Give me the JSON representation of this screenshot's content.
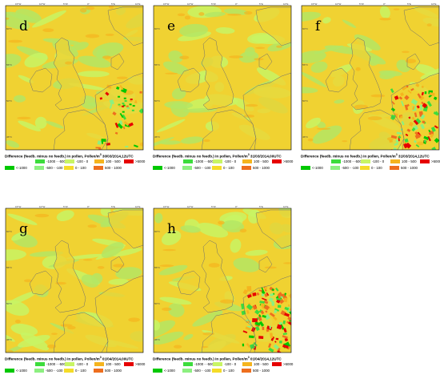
{
  "colors": {
    "lt_-1000": "#00c800",
    "-1000_-500": "#3cdc3c",
    "-500_-100": "#8cf080",
    "-100_0": "#c8f564",
    "0_100": "#f5dc28",
    "100_500": "#f5b41e",
    "500_1000": "#ee6e1e",
    "gt_5000": "#e60000",
    "sea_base": "#b4e664",
    "land_base": "#f0d232",
    "coast": "#6e6e6e",
    "border": "#000000"
  },
  "legend": [
    {
      "key": "lt_-1000",
      "label": "<-1000"
    },
    {
      "key": "-1000_-500",
      "label": "-1000 - -500"
    },
    {
      "key": "-500_-100",
      "label": "-500 - -100"
    },
    {
      "key": "-100_0",
      "label": "-100 - 0"
    },
    {
      "key": "0_100",
      "label": "0 - 100"
    },
    {
      "key": "100_500",
      "label": "100 - 500"
    },
    {
      "key": "500_1000",
      "label": "500 - 1000"
    },
    {
      "key": "gt_5000",
      "label": ">5000"
    }
  ],
  "caption_prefix": "Difference (feedb. minus no feedb.) in pollen, Pollen/m",
  "caption_sup": "3",
  "panels": [
    {
      "letter": "d",
      "date": "30/03/2014,12UTC",
      "hotspot": 1
    },
    {
      "letter": "e",
      "date": "31/03/2014,00UTC",
      "hotspot": 0
    },
    {
      "letter": "f",
      "date": "31/03/2014,12UTC",
      "hotspot": 3
    },
    {
      "letter": "g",
      "date": "01/04/2014,00UTC",
      "hotspot": 0
    },
    {
      "letter": "h",
      "date": "01/04/2014,12UTC",
      "hotspot": 4
    }
  ],
  "ticks_top": [
    "15°W",
    "10°W",
    "5°W",
    "0°",
    "5°E",
    "10°E"
  ],
  "ticks_left": [
    "60°N",
    "55°N",
    "50°N",
    "45°N"
  ]
}
